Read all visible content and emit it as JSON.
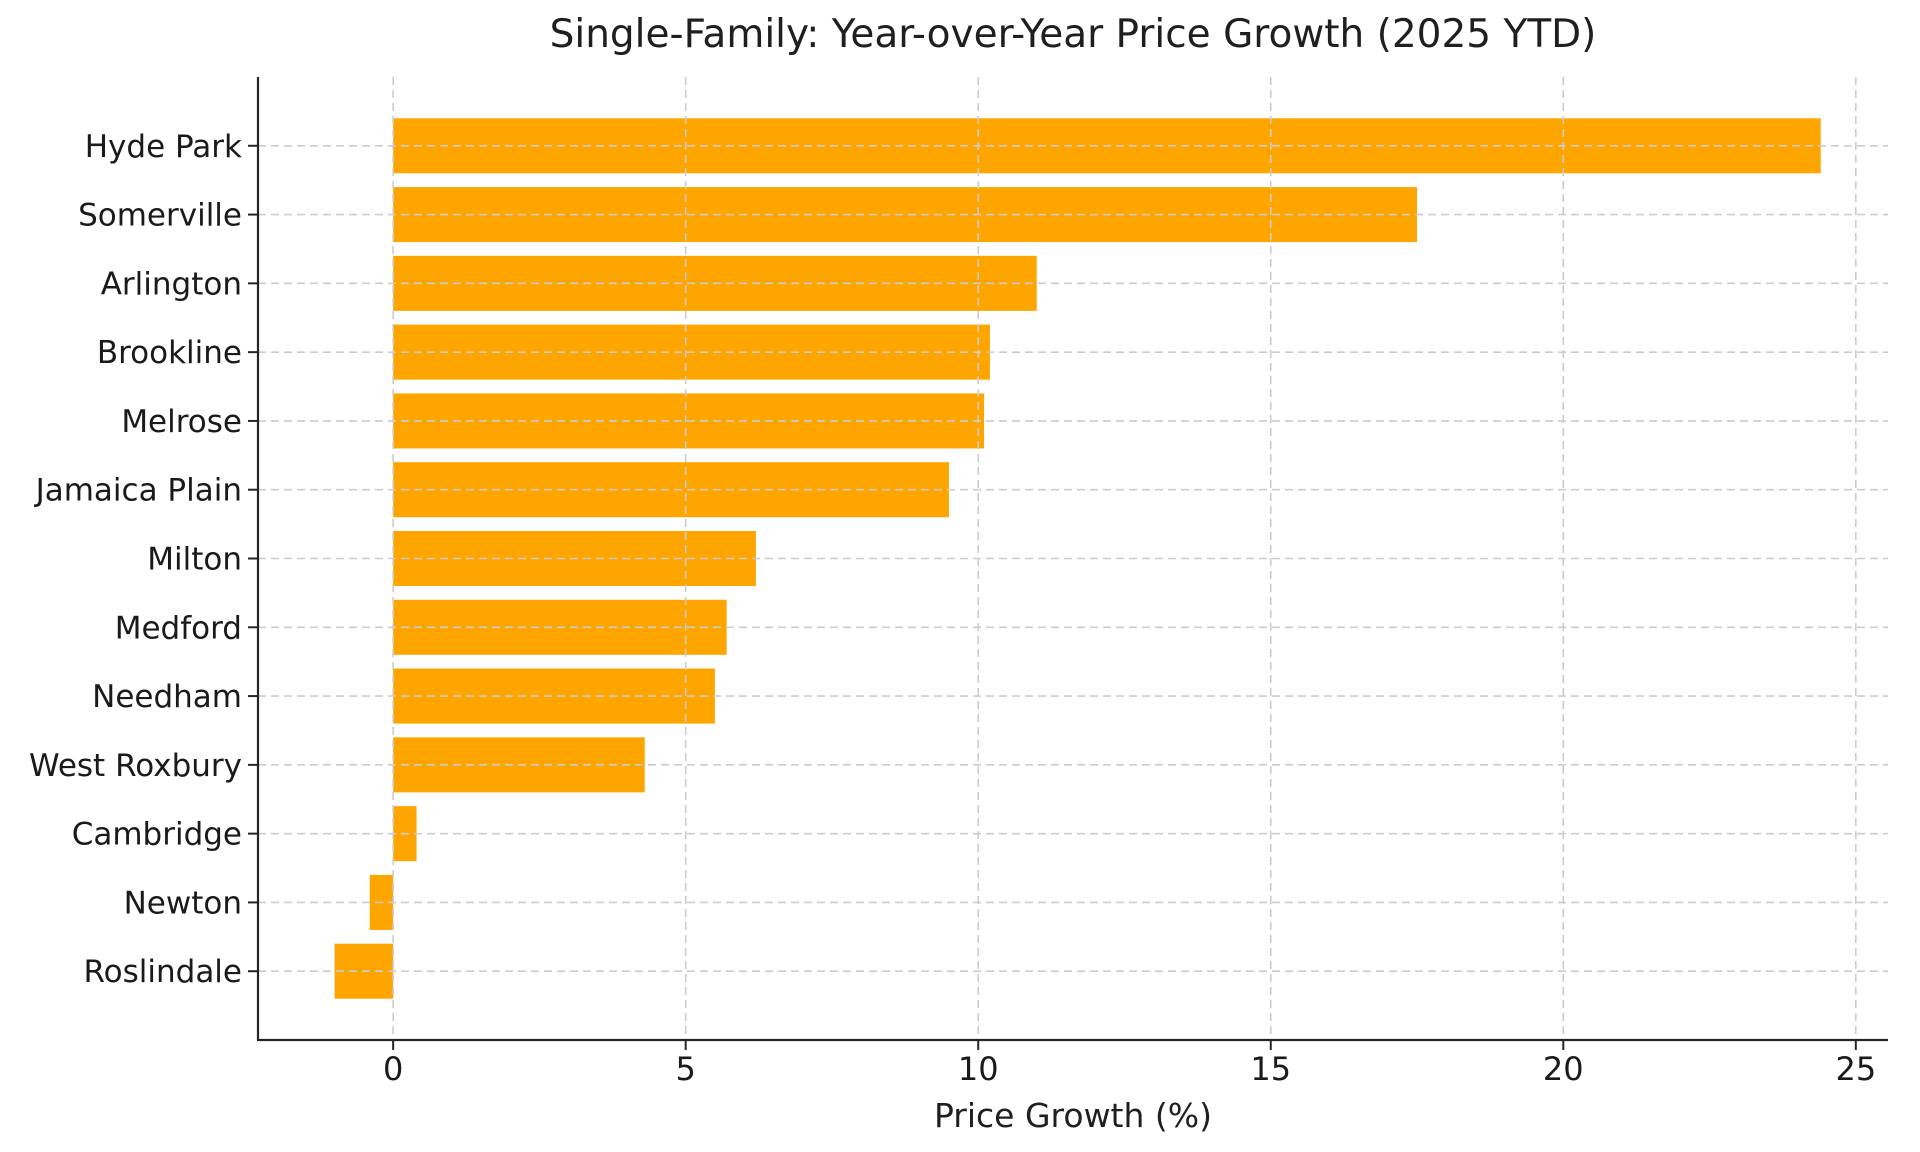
{
  "figure": {
    "background_color": "#ffffff"
  },
  "chart_data": {
    "type": "bar",
    "orientation": "horizontal",
    "title": "Single-Family: Year-over-Year Price Growth (2025 YTD)",
    "xlabel": "Price Growth (%)",
    "ylabel": "",
    "categories": [
      "Hyde Park",
      "Somerville",
      "Arlington",
      "Brookline",
      "Melrose",
      "Jamaica Plain",
      "Milton",
      "Medford",
      "Needham",
      "West Roxbury",
      "Cambridge",
      "Newton",
      "Roslindale"
    ],
    "values": [
      24.4,
      17.5,
      11.0,
      10.2,
      10.1,
      9.5,
      6.2,
      5.7,
      5.5,
      4.3,
      0.4,
      -0.4,
      -1.0
    ],
    "xticks": [
      0,
      5,
      10,
      15,
      20,
      25
    ],
    "xtick_labels": [
      "0",
      "5",
      "10",
      "15",
      "20",
      "25"
    ],
    "xlim": [
      -2.31,
      25.55
    ],
    "grid": "dashed vertical and horizontal gridlines drawn on top of bars",
    "legend": "none",
    "bar_color": "#ffa500",
    "grid_color": "#cccccc",
    "spine_color": "#262626",
    "text_color": "#1a1a1a"
  }
}
